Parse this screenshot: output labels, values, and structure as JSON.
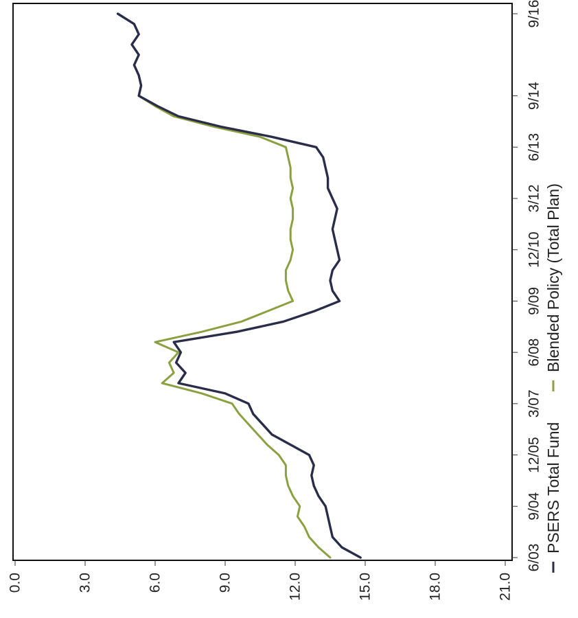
{
  "chart_data": {
    "type": "line",
    "orientation": "rotated-90-clockwise",
    "title": "",
    "xlabel": "",
    "ylabel": "",
    "ylim": [
      0,
      21
    ],
    "y_ticks": [
      "0.0",
      "3.0",
      "6.0",
      "9.0",
      "12.0",
      "15.0",
      "18.0",
      "21.0"
    ],
    "x_ticks": [
      "6/03",
      "9/04",
      "12/05",
      "3/07",
      "6/08",
      "9/09",
      "12/10",
      "3/12",
      "6/13",
      "9/14",
      "9/16"
    ],
    "grid": false,
    "legend_position": "bottom",
    "series": [
      {
        "name": "PSERS Total Fund",
        "color": "#2a2d4a",
        "points": [
          [
            "6/03",
            14.8
          ],
          [
            "9/03",
            14.0
          ],
          [
            "12/03",
            13.6
          ],
          [
            "3/04",
            13.5
          ],
          [
            "6/04",
            13.4
          ],
          [
            "9/04",
            13.3
          ],
          [
            "12/04",
            13.0
          ],
          [
            "3/05",
            12.8
          ],
          [
            "6/05",
            12.7
          ],
          [
            "9/05",
            12.8
          ],
          [
            "12/05",
            12.6
          ],
          [
            "3/06",
            11.8
          ],
          [
            "6/06",
            11.0
          ],
          [
            "9/06",
            10.6
          ],
          [
            "12/06",
            10.2
          ],
          [
            "3/07",
            10.0
          ],
          [
            "6/07",
            9.0
          ],
          [
            "9/07",
            7.0
          ],
          [
            "12/07",
            7.3
          ],
          [
            "3/08",
            6.9
          ],
          [
            "6/08",
            7.1
          ],
          [
            "9/08",
            6.8
          ],
          [
            "12/08",
            9.5
          ],
          [
            "3/09",
            11.5
          ],
          [
            "6/09",
            12.8
          ],
          [
            "9/09",
            13.9
          ],
          [
            "12/09",
            13.6
          ],
          [
            "3/10",
            13.5
          ],
          [
            "6/10",
            13.6
          ],
          [
            "9/10",
            13.9
          ],
          [
            "12/10",
            13.8
          ],
          [
            "3/11",
            13.7
          ],
          [
            "6/11",
            13.6
          ],
          [
            "9/11",
            13.7
          ],
          [
            "12/11",
            13.8
          ],
          [
            "3/12",
            13.6
          ],
          [
            "6/12",
            13.4
          ],
          [
            "9/12",
            13.4
          ],
          [
            "12/12",
            13.3
          ],
          [
            "3/13",
            13.2
          ],
          [
            "6/13",
            12.9
          ],
          [
            "9/13",
            11.0
          ],
          [
            "12/13",
            8.8
          ],
          [
            "3/14",
            7.0
          ],
          [
            "6/14",
            6.1
          ],
          [
            "9/14",
            5.3
          ],
          [
            "12/14",
            5.4
          ],
          [
            "3/15",
            5.3
          ],
          [
            "6/15",
            5.1
          ],
          [
            "9/15",
            5.3
          ],
          [
            "12/15",
            5.0
          ],
          [
            "3/16",
            5.3
          ],
          [
            "6/16",
            5.1
          ],
          [
            "9/16",
            4.4
          ]
        ]
      },
      {
        "name": "Blended Policy (Total Plan)",
        "color": "#8ba040",
        "points": [
          [
            "6/03",
            13.5
          ],
          [
            "9/03",
            13.0
          ],
          [
            "12/03",
            12.6
          ],
          [
            "3/04",
            12.4
          ],
          [
            "6/04",
            12.1
          ],
          [
            "9/04",
            12.2
          ],
          [
            "12/04",
            11.9
          ],
          [
            "3/05",
            11.7
          ],
          [
            "6/05",
            11.6
          ],
          [
            "9/05",
            11.6
          ],
          [
            "12/05",
            11.3
          ],
          [
            "3/06",
            10.8
          ],
          [
            "6/06",
            10.4
          ],
          [
            "9/06",
            10.0
          ],
          [
            "12/06",
            9.6
          ],
          [
            "3/07",
            9.3
          ],
          [
            "6/07",
            8.0
          ],
          [
            "9/07",
            6.3
          ],
          [
            "12/07",
            6.8
          ],
          [
            "3/08",
            6.6
          ],
          [
            "6/08",
            7.0
          ],
          [
            "9/08",
            6.0
          ],
          [
            "12/08",
            8.0
          ],
          [
            "3/09",
            9.7
          ],
          [
            "6/09",
            10.8
          ],
          [
            "9/09",
            11.9
          ],
          [
            "12/09",
            11.7
          ],
          [
            "3/10",
            11.6
          ],
          [
            "6/10",
            11.6
          ],
          [
            "9/10",
            11.8
          ],
          [
            "12/10",
            11.9
          ],
          [
            "3/11",
            11.8
          ],
          [
            "6/11",
            11.8
          ],
          [
            "9/11",
            11.9
          ],
          [
            "12/11",
            11.9
          ],
          [
            "3/12",
            11.8
          ],
          [
            "6/12",
            11.9
          ],
          [
            "9/12",
            11.8
          ],
          [
            "12/12",
            11.8
          ],
          [
            "3/13",
            11.7
          ],
          [
            "6/13",
            11.6
          ],
          [
            "9/13",
            10.5
          ],
          [
            "12/13",
            8.5
          ],
          [
            "3/14",
            6.8
          ],
          [
            "6/14",
            6.0
          ],
          [
            "9/14",
            5.3
          ],
          [
            "12/14",
            5.4
          ],
          [
            "3/15",
            5.3
          ],
          [
            "6/15",
            5.1
          ],
          [
            "9/15",
            5.3
          ],
          [
            "12/15",
            5.0
          ],
          [
            "3/16",
            5.3
          ],
          [
            "6/16",
            5.1
          ],
          [
            "9/16",
            4.4
          ]
        ]
      }
    ]
  }
}
